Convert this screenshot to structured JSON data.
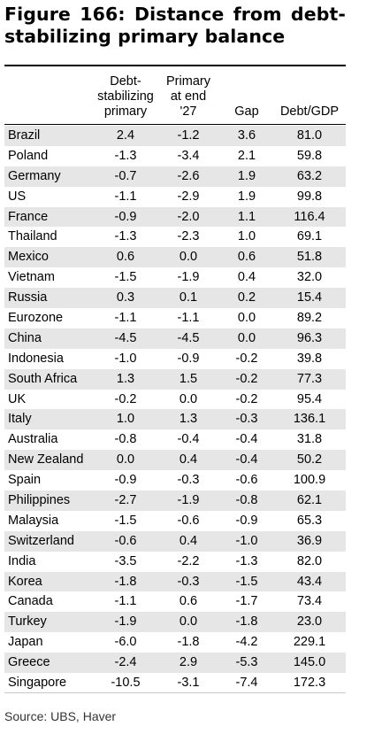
{
  "figure": {
    "title": "Figure 166: Distance from debt-stabilizing primary balance"
  },
  "table": {
    "headers": [
      "",
      "Debt-\nstabilizing\nprimary",
      "Primary\nat end\n'27",
      "Gap",
      "Debt/GDP"
    ],
    "rows": [
      [
        "Brazil",
        "2.4",
        "-1.2",
        "3.6",
        "81.0"
      ],
      [
        "Poland",
        "-1.3",
        "-3.4",
        "2.1",
        "59.8"
      ],
      [
        "Germany",
        "-0.7",
        "-2.6",
        "1.9",
        "63.2"
      ],
      [
        "US",
        "-1.1",
        "-2.9",
        "1.9",
        "99.8"
      ],
      [
        "France",
        "-0.9",
        "-2.0",
        "1.1",
        "116.4"
      ],
      [
        "Thailand",
        "-1.3",
        "-2.3",
        "1.0",
        "69.1"
      ],
      [
        "Mexico",
        "0.6",
        "0.0",
        "0.6",
        "51.8"
      ],
      [
        "Vietnam",
        "-1.5",
        "-1.9",
        "0.4",
        "32.0"
      ],
      [
        "Russia",
        "0.3",
        "0.1",
        "0.2",
        "15.4"
      ],
      [
        "Eurozone",
        "-1.1",
        "-1.1",
        "0.0",
        "89.2"
      ],
      [
        "China",
        "-4.5",
        "-4.5",
        "0.0",
        "96.3"
      ],
      [
        "Indonesia",
        "-1.0",
        "-0.9",
        "-0.2",
        "39.8"
      ],
      [
        "South Africa",
        "1.3",
        "1.5",
        "-0.2",
        "77.3"
      ],
      [
        "UK",
        "-0.2",
        "0.0",
        "-0.2",
        "95.4"
      ],
      [
        "Italy",
        "1.0",
        "1.3",
        "-0.3",
        "136.1"
      ],
      [
        "Australia",
        "-0.8",
        "-0.4",
        "-0.4",
        "31.8"
      ],
      [
        "New Zealand",
        "0.0",
        "0.4",
        "-0.4",
        "50.2"
      ],
      [
        "Spain",
        "-0.9",
        "-0.3",
        "-0.6",
        "100.9"
      ],
      [
        "Philippines",
        "-2.7",
        "-1.9",
        "-0.8",
        "62.1"
      ],
      [
        "Malaysia",
        "-1.5",
        "-0.6",
        "-0.9",
        "65.3"
      ],
      [
        "Switzerland",
        "-0.6",
        "0.4",
        "-1.0",
        "36.9"
      ],
      [
        "India",
        "-3.5",
        "-2.2",
        "-1.3",
        "82.0"
      ],
      [
        "Korea",
        "-1.8",
        "-0.3",
        "-1.5",
        "43.4"
      ],
      [
        "Canada",
        "-1.1",
        "0.6",
        "-1.7",
        "73.4"
      ],
      [
        "Turkey",
        "-1.9",
        "0.0",
        "-1.8",
        "23.0"
      ],
      [
        "Japan",
        "-6.0",
        "-1.8",
        "-4.2",
        "229.1"
      ],
      [
        "Greece",
        "-2.4",
        "2.9",
        "-5.3",
        "145.0"
      ],
      [
        "Singapore",
        "-10.5",
        "-3.1",
        "-7.4",
        "172.3"
      ]
    ]
  },
  "source": "Source: UBS, Haver",
  "colors": {
    "shaded_row": "#e6e6e6",
    "rule": "#000000",
    "text": "#000000"
  }
}
